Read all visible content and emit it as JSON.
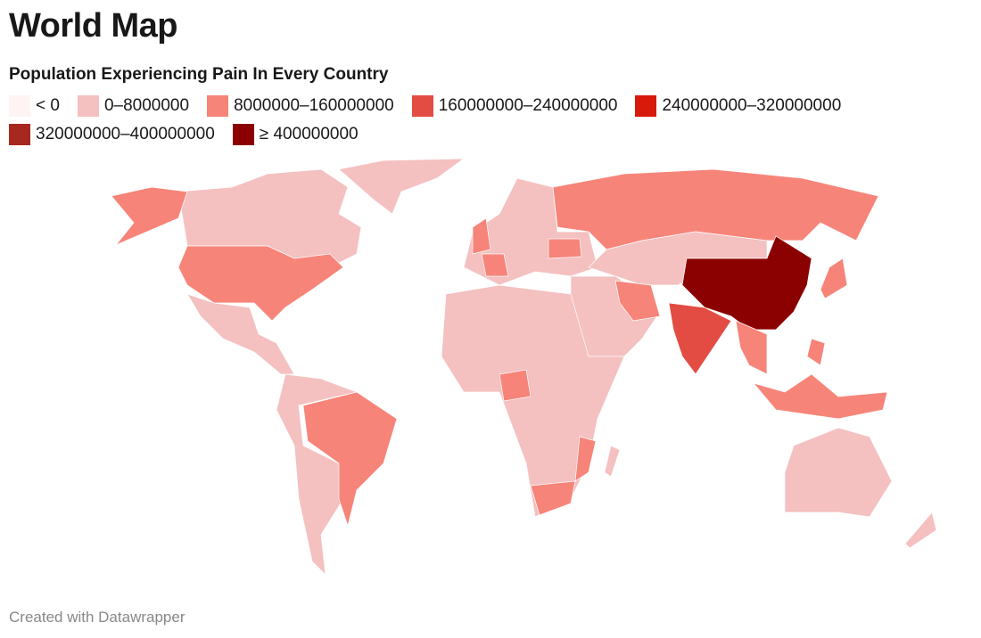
{
  "title": "World Map",
  "subtitle": "Population Experiencing Pain In Every Country",
  "legend": [
    {
      "label": "< 0",
      "color": "#fff4f4"
    },
    {
      "label": "0–8000000",
      "color": "#f4c0c0"
    },
    {
      "label": "8000000–160000000",
      "color": "#f78479"
    },
    {
      "label": "160000000–240000000",
      "color": "#e34c42"
    },
    {
      "label": "240000000–320000000",
      "color": "#d81a0a"
    },
    {
      "label": "320000000–400000000",
      "color": "#a6281e"
    },
    {
      "label": "≥ 400000000",
      "color": "#8b0000"
    }
  ],
  "footer": "Created with Datawrapper"
}
